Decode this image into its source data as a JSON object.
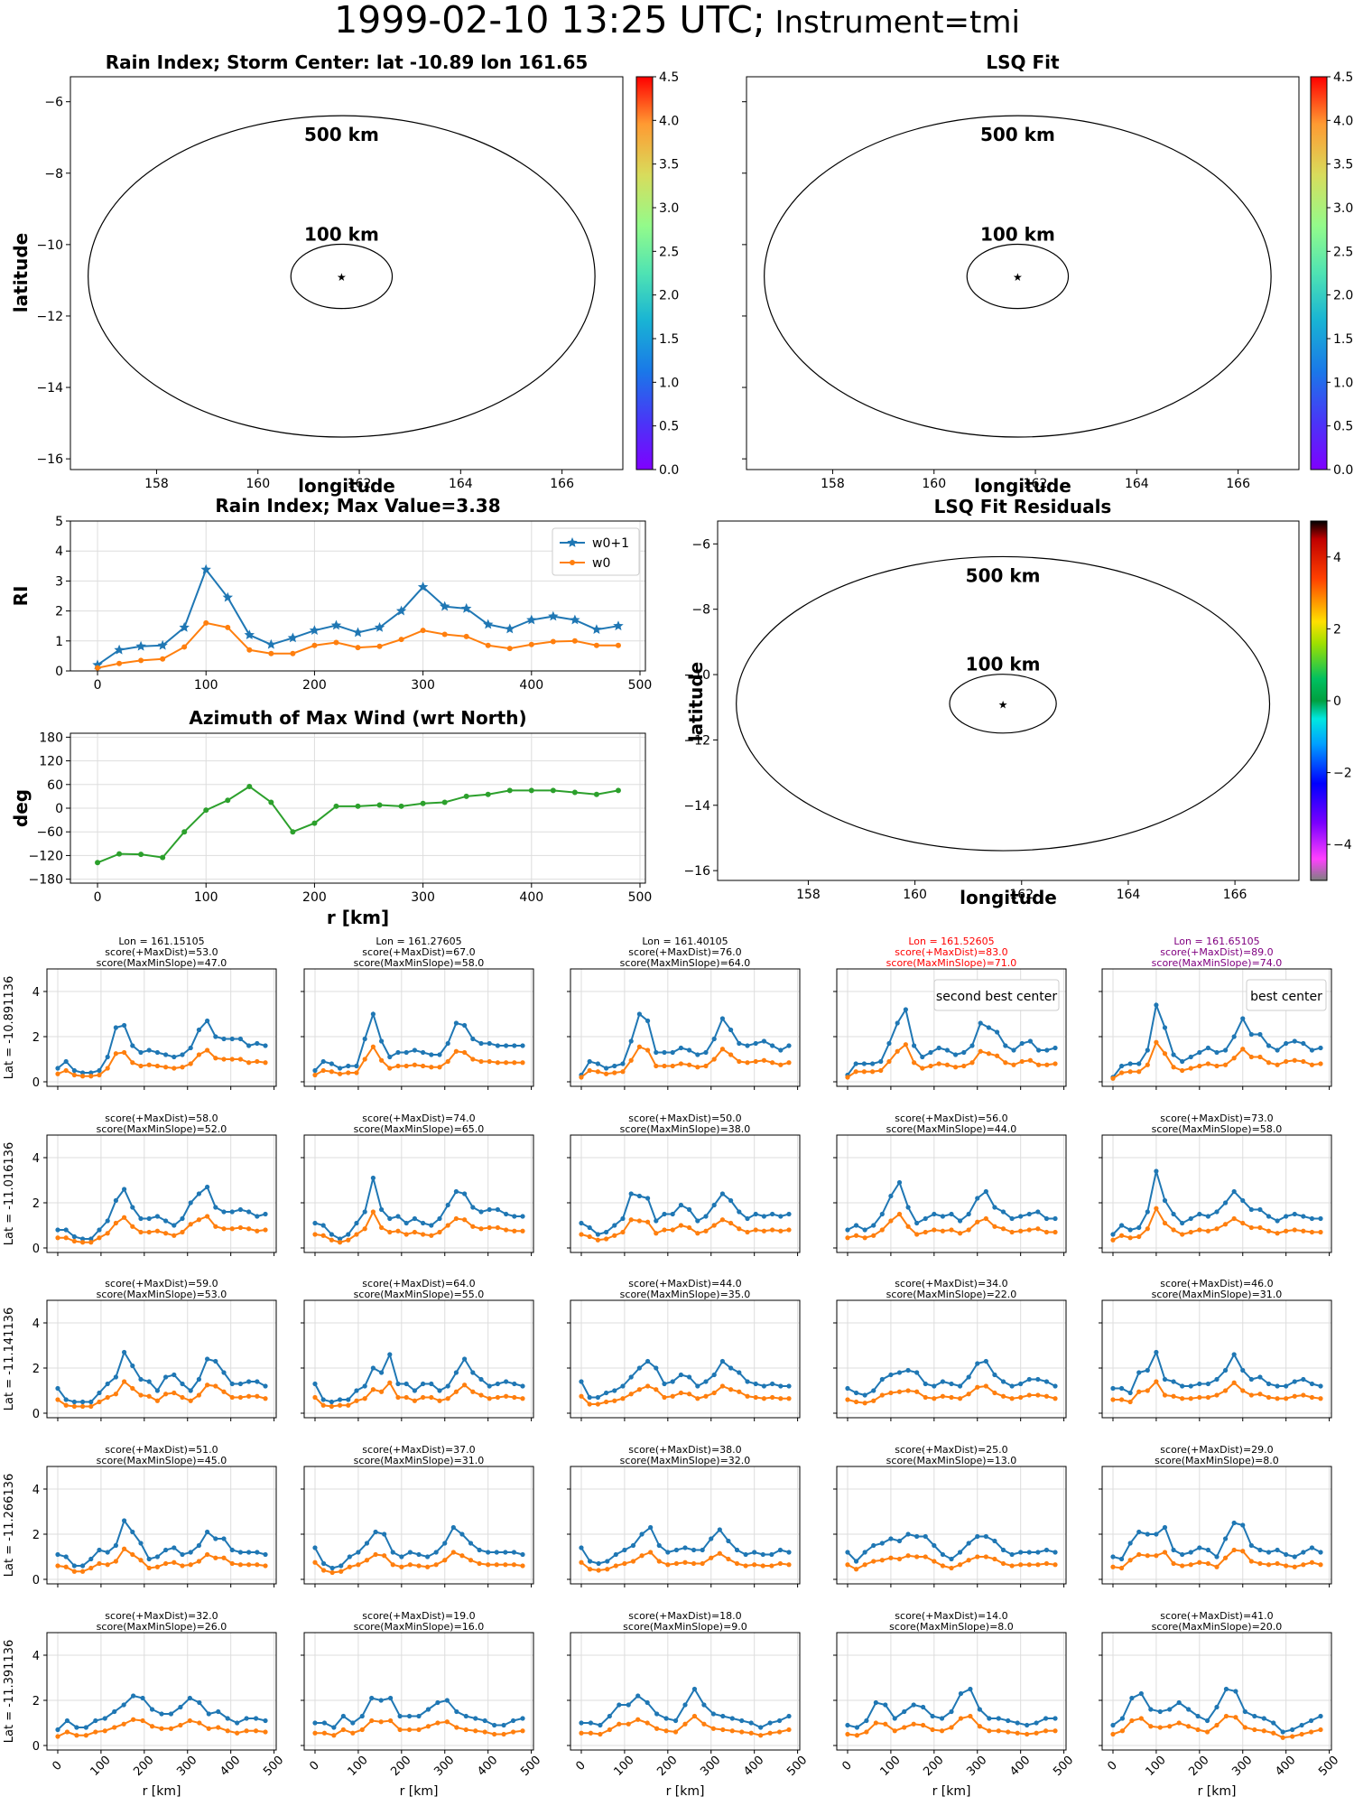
{
  "figure": {
    "title_main": "1999-02-10 13:25 UTC;",
    "title_instrument": " Instrument=tmi"
  },
  "maps": [
    {
      "title": "Rain Index; Storm Center: lat -10.89 lon 161.65",
      "xlabel": "longitude",
      "ylabel": "latitude",
      "circle_labels": [
        "500 km",
        "100 km"
      ],
      "colorbar": {
        "cmap": "rainbow",
        "min": 0.0,
        "max": 4.5,
        "ticks": [
          "0.0",
          "0.5",
          "1.0",
          "1.5",
          "2.0",
          "2.5",
          "3.0",
          "3.5",
          "4.0",
          "4.5"
        ]
      }
    },
    {
      "title": "LSQ Fit",
      "xlabel": "longitude",
      "ylabel": "",
      "circle_labels": [
        "500 km",
        "100 km"
      ],
      "colorbar": {
        "cmap": "rainbow",
        "min": 0.0,
        "max": 4.5,
        "ticks": [
          "0.0",
          "0.5",
          "1.0",
          "1.5",
          "2.0",
          "2.5",
          "3.0",
          "3.5",
          "4.0",
          "4.5"
        ]
      }
    },
    {
      "title": "LSQ Fit Residuals",
      "xlabel": "longitude",
      "ylabel": "latitude",
      "circle_labels": [
        "500 km",
        "100 km"
      ],
      "colorbar": {
        "cmap": "diverging",
        "min": -5,
        "max": 5,
        "ticks": [
          "−4",
          "−2",
          "0",
          "2",
          "4"
        ]
      }
    }
  ],
  "map_axes": {
    "xticks": [
      "158",
      "160",
      "162",
      "164",
      "166"
    ],
    "yticks": [
      "−6",
      "−8",
      "−10",
      "−12",
      "−14",
      "−16"
    ]
  },
  "chart_data": [
    {
      "type": "line",
      "title": "Rain Index; Max Value=3.38",
      "xlabel": "",
      "ylabel": "RI",
      "xlim": [
        -25,
        505
      ],
      "ylim": [
        0,
        5
      ],
      "xticks": [
        "0",
        "100",
        "200",
        "300",
        "400",
        "500"
      ],
      "yticks": [
        "0",
        "1",
        "2",
        "3",
        "4",
        "5"
      ],
      "legend": "upper-right",
      "x": [
        0,
        20,
        40,
        60,
        80,
        100,
        120,
        140,
        160,
        180,
        200,
        220,
        240,
        260,
        280,
        300,
        320,
        340,
        360,
        380,
        400,
        420,
        440,
        460,
        480
      ],
      "series": [
        {
          "name": "w0+1",
          "color": "#1f77b4",
          "marker": "star",
          "values": [
            0.2,
            0.7,
            0.82,
            0.85,
            1.45,
            3.38,
            2.45,
            1.2,
            0.88,
            1.1,
            1.35,
            1.52,
            1.28,
            1.45,
            2.0,
            2.8,
            2.15,
            2.08,
            1.55,
            1.4,
            1.7,
            1.82,
            1.7,
            1.38,
            1.5
          ]
        },
        {
          "name": "w0",
          "color": "#ff7f0e",
          "marker": "dot",
          "values": [
            0.1,
            0.25,
            0.35,
            0.4,
            0.8,
            1.6,
            1.45,
            0.7,
            0.58,
            0.58,
            0.85,
            0.95,
            0.78,
            0.82,
            1.05,
            1.35,
            1.22,
            1.15,
            0.85,
            0.75,
            0.88,
            0.98,
            1.0,
            0.85,
            0.85
          ]
        }
      ]
    },
    {
      "type": "line",
      "title": "Azimuth of Max Wind (wrt North)",
      "xlabel": "r [km]",
      "ylabel": "deg",
      "xlim": [
        -25,
        505
      ],
      "ylim": [
        -190,
        190
      ],
      "xticks": [
        "0",
        "100",
        "200",
        "300",
        "400",
        "500"
      ],
      "yticks": [
        "−180",
        "−120",
        "−60",
        "0",
        "60",
        "120",
        "180"
      ],
      "x": [
        0,
        20,
        40,
        60,
        80,
        100,
        120,
        140,
        160,
        180,
        200,
        220,
        240,
        260,
        280,
        300,
        320,
        340,
        360,
        380,
        400,
        420,
        440,
        460,
        480
      ],
      "series": [
        {
          "name": "",
          "color": "#2ca02c",
          "marker": "dot",
          "values": [
            -138,
            -116,
            -117,
            -125,
            -60,
            -5,
            20,
            55,
            15,
            -60,
            -38,
            5,
            5,
            8,
            5,
            12,
            15,
            30,
            35,
            45,
            45,
            45,
            40,
            35,
            45
          ]
        }
      ]
    }
  ],
  "grid": {
    "xticks": [
      "0",
      "100",
      "200",
      "300",
      "400",
      "500"
    ],
    "yticks": [
      "0",
      "2",
      "4"
    ],
    "xlabel": "r [km]",
    "row_labels": [
      "Lat = -10.891136",
      "Lat = -11.016136",
      "Lat = -11.141136",
      "Lat = -11.266136",
      "Lat = -11.391136"
    ],
    "header_titles": [
      {
        "lon": "Lon = 161.15105",
        "s1": "score(+MaxDist)=53.0",
        "s2": "score(MaxMinSlope)=47.0",
        "color": "#000000"
      },
      {
        "lon": "Lon = 161.27605",
        "s1": "score(+MaxDist)=67.0",
        "s2": "score(MaxMinSlope)=58.0",
        "color": "#000000"
      },
      {
        "lon": "Lon = 161.40105",
        "s1": "score(+MaxDist)=76.0",
        "s2": "score(MaxMinSlope)=64.0",
        "color": "#000000"
      },
      {
        "lon": "Lon = 161.52605",
        "s1": "score(+MaxDist)=83.0",
        "s2": "score(MaxMinSlope)=71.0",
        "color": "#ff0000"
      },
      {
        "lon": "Lon = 161.65105",
        "s1": "score(+MaxDist)=89.0",
        "s2": "score(MaxMinSlope)=74.0",
        "color": "#800080"
      }
    ],
    "row_scores": [
      [],
      [
        [
          "score(+MaxDist)=58.0",
          "score(MaxMinSlope)=52.0"
        ],
        [
          "score(+MaxDist)=74.0",
          "score(MaxMinSlope)=65.0"
        ],
        [
          "score(+MaxDist)=50.0",
          "score(MaxMinSlope)=38.0"
        ],
        [
          "score(+MaxDist)=56.0",
          "score(MaxMinSlope)=44.0"
        ],
        [
          "score(+MaxDist)=73.0",
          "score(MaxMinSlope)=58.0"
        ]
      ],
      [
        [
          "score(+MaxDist)=59.0",
          "score(MaxMinSlope)=53.0"
        ],
        [
          "score(+MaxDist)=64.0",
          "score(MaxMinSlope)=55.0"
        ],
        [
          "score(+MaxDist)=44.0",
          "score(MaxMinSlope)=35.0"
        ],
        [
          "score(+MaxDist)=34.0",
          "score(MaxMinSlope)=22.0"
        ],
        [
          "score(+MaxDist)=46.0",
          "score(MaxMinSlope)=31.0"
        ]
      ],
      [
        [
          "score(+MaxDist)=51.0",
          "score(MaxMinSlope)=45.0"
        ],
        [
          "score(+MaxDist)=37.0",
          "score(MaxMinSlope)=31.0"
        ],
        [
          "score(+MaxDist)=38.0",
          "score(MaxMinSlope)=32.0"
        ],
        [
          "score(+MaxDist)=25.0",
          "score(MaxMinSlope)=13.0"
        ],
        [
          "score(+MaxDist)=29.0",
          "score(MaxMinSlope)=8.0"
        ]
      ],
      [
        [
          "score(+MaxDist)=32.0",
          "score(MaxMinSlope)=26.0"
        ],
        [
          "score(+MaxDist)=19.0",
          "score(MaxMinSlope)=16.0"
        ],
        [
          "score(+MaxDist)=18.0",
          "score(MaxMinSlope)=9.0"
        ],
        [
          "score(+MaxDist)=14.0",
          "score(MaxMinSlope)=8.0"
        ],
        [
          "score(+MaxDist)=41.0",
          "score(MaxMinSlope)=20.0"
        ]
      ]
    ],
    "annotations": {
      "second_best": "second best center",
      "best": "best center"
    },
    "series_blue": [
      [
        [
          0.6,
          0.9,
          0.5,
          0.4,
          0.4,
          0.5,
          1.1,
          2.4,
          2.5,
          1.6,
          1.3,
          1.4,
          1.3,
          1.2,
          1.1,
          1.2,
          1.5,
          2.3,
          2.7,
          2.0,
          1.9,
          1.9,
          1.9,
          1.6,
          1.7,
          1.6
        ],
        [
          0.5,
          0.9,
          0.8,
          0.6,
          0.7,
          0.7,
          1.9,
          3.0,
          1.8,
          1.1,
          1.3,
          1.3,
          1.4,
          1.3,
          1.2,
          1.2,
          1.7,
          2.6,
          2.5,
          1.9,
          1.7,
          1.7,
          1.6,
          1.6,
          1.6,
          1.6
        ],
        [
          0.3,
          0.9,
          0.8,
          0.6,
          0.7,
          0.8,
          1.8,
          3.0,
          2.7,
          1.3,
          1.3,
          1.3,
          1.5,
          1.4,
          1.2,
          1.3,
          1.9,
          2.8,
          2.3,
          1.7,
          1.6,
          1.7,
          1.8,
          1.6,
          1.4,
          1.6
        ],
        [
          0.3,
          0.8,
          0.8,
          0.8,
          0.9,
          1.7,
          2.6,
          3.2,
          1.6,
          1.1,
          1.3,
          1.5,
          1.4,
          1.2,
          1.3,
          1.6,
          2.6,
          2.4,
          2.2,
          1.6,
          1.4,
          1.7,
          1.8,
          1.4,
          1.4,
          1.5
        ],
        [
          0.2,
          0.7,
          0.8,
          0.8,
          1.4,
          3.4,
          2.4,
          1.2,
          0.9,
          1.1,
          1.3,
          1.5,
          1.3,
          1.4,
          2.0,
          2.8,
          2.1,
          2.1,
          1.6,
          1.4,
          1.7,
          1.8,
          1.7,
          1.4,
          1.5
        ]
      ],
      [
        [
          0.8,
          0.8,
          0.5,
          0.4,
          0.4,
          0.8,
          1.2,
          2.1,
          2.6,
          1.8,
          1.3,
          1.3,
          1.4,
          1.2,
          1.0,
          1.3,
          2.0,
          2.4,
          2.7,
          1.8,
          1.6,
          1.6,
          1.7,
          1.6,
          1.4,
          1.5
        ],
        [
          1.1,
          1.0,
          0.6,
          0.4,
          0.6,
          1.1,
          1.6,
          3.1,
          1.7,
          1.3,
          1.4,
          1.1,
          1.3,
          1.1,
          1.0,
          1.3,
          1.9,
          2.5,
          2.4,
          1.8,
          1.6,
          1.7,
          1.7,
          1.5,
          1.4,
          1.4
        ],
        [
          1.1,
          0.9,
          0.6,
          0.7,
          1.0,
          1.3,
          2.4,
          2.3,
          2.2,
          1.2,
          1.5,
          1.5,
          1.9,
          1.7,
          1.2,
          1.4,
          1.9,
          2.4,
          2.1,
          1.6,
          1.3,
          1.5,
          1.4,
          1.5,
          1.4,
          1.5
        ],
        [
          0.8,
          1.0,
          0.8,
          1.0,
          1.5,
          2.3,
          2.9,
          1.8,
          1.1,
          1.3,
          1.5,
          1.4,
          1.5,
          1.2,
          1.5,
          2.2,
          2.5,
          1.8,
          1.6,
          1.3,
          1.4,
          1.5,
          1.6,
          1.3,
          1.3
        ],
        [
          0.6,
          1.0,
          0.8,
          0.9,
          1.6,
          3.4,
          2.1,
          1.5,
          1.1,
          1.3,
          1.5,
          1.4,
          1.6,
          2.0,
          2.5,
          2.1,
          1.7,
          1.7,
          1.4,
          1.2,
          1.4,
          1.5,
          1.4,
          1.3,
          1.3
        ]
      ],
      [
        [
          1.1,
          0.6,
          0.5,
          0.5,
          0.5,
          0.9,
          1.3,
          1.6,
          2.7,
          2.1,
          1.5,
          1.4,
          1.0,
          1.6,
          1.7,
          1.3,
          1.0,
          1.5,
          2.4,
          2.3,
          1.8,
          1.3,
          1.3,
          1.4,
          1.4,
          1.2
        ],
        [
          1.3,
          0.6,
          0.5,
          0.6,
          0.6,
          1.0,
          1.2,
          2.0,
          1.8,
          2.6,
          1.3,
          1.3,
          1.0,
          1.3,
          1.3,
          1.0,
          1.2,
          1.8,
          2.4,
          1.8,
          1.5,
          1.2,
          1.3,
          1.4,
          1.3,
          1.2
        ],
        [
          1.4,
          0.7,
          0.7,
          0.9,
          1.0,
          1.2,
          1.6,
          2.0,
          2.3,
          2.0,
          1.3,
          1.4,
          1.7,
          1.6,
          1.2,
          1.4,
          1.7,
          2.3,
          2.0,
          1.8,
          1.4,
          1.3,
          1.2,
          1.3,
          1.2,
          1.2
        ],
        [
          1.1,
          0.9,
          0.8,
          1.0,
          1.5,
          1.7,
          1.8,
          1.9,
          1.8,
          1.3,
          1.2,
          1.4,
          1.3,
          1.2,
          1.6,
          2.2,
          2.3,
          1.7,
          1.4,
          1.2,
          1.3,
          1.5,
          1.5,
          1.4,
          1.2
        ],
        [
          1.1,
          1.1,
          0.9,
          1.8,
          1.9,
          2.7,
          1.5,
          1.4,
          1.2,
          1.2,
          1.3,
          1.3,
          1.5,
          1.9,
          2.6,
          1.9,
          1.5,
          1.6,
          1.3,
          1.2,
          1.2,
          1.4,
          1.5,
          1.3,
          1.2
        ]
      ],
      [
        [
          1.1,
          1.0,
          0.6,
          0.6,
          0.9,
          1.3,
          1.2,
          1.5,
          2.6,
          2.1,
          1.6,
          0.9,
          1.0,
          1.3,
          1.4,
          1.1,
          1.2,
          1.5,
          2.1,
          1.8,
          1.8,
          1.3,
          1.2,
          1.2,
          1.2,
          1.1
        ],
        [
          1.4,
          0.7,
          0.5,
          0.6,
          1.0,
          1.2,
          1.6,
          2.1,
          2.0,
          1.2,
          1.0,
          1.2,
          1.1,
          1.0,
          1.2,
          1.6,
          2.3,
          2.0,
          1.6,
          1.3,
          1.2,
          1.2,
          1.2,
          1.2,
          1.1
        ],
        [
          1.4,
          0.8,
          0.7,
          0.8,
          1.1,
          1.3,
          1.5,
          2.0,
          2.3,
          1.5,
          1.2,
          1.3,
          1.4,
          1.3,
          1.3,
          1.8,
          2.2,
          1.7,
          1.3,
          1.1,
          1.2,
          1.1,
          1.1,
          1.3,
          1.2
        ],
        [
          1.2,
          0.8,
          1.2,
          1.5,
          1.6,
          1.8,
          1.7,
          2.0,
          1.9,
          1.9,
          1.5,
          1.1,
          0.9,
          1.2,
          1.6,
          1.9,
          1.9,
          1.7,
          1.3,
          1.1,
          1.2,
          1.2,
          1.2,
          1.3,
          1.2
        ],
        [
          1.0,
          0.9,
          1.6,
          2.1,
          2.0,
          2.0,
          2.3,
          1.3,
          1.1,
          1.2,
          1.4,
          1.3,
          1.0,
          1.8,
          2.5,
          2.4,
          1.5,
          1.3,
          1.2,
          1.3,
          1.1,
          1.0,
          1.2,
          1.4,
          1.2
        ]
      ],
      [
        [
          0.7,
          1.1,
          0.8,
          0.8,
          1.1,
          1.2,
          1.5,
          1.8,
          2.2,
          2.1,
          1.6,
          1.4,
          1.4,
          1.7,
          2.1,
          1.9,
          1.4,
          1.5,
          1.2,
          1.0,
          1.2,
          1.2,
          1.1
        ],
        [
          1.0,
          1.0,
          0.8,
          1.3,
          1.0,
          1.3,
          2.1,
          2.0,
          2.1,
          1.3,
          1.3,
          1.3,
          1.6,
          1.9,
          2.0,
          1.5,
          1.3,
          1.2,
          1.1,
          0.9,
          0.9,
          1.1,
          1.2
        ],
        [
          1.0,
          1.0,
          0.9,
          1.3,
          1.8,
          1.8,
          2.2,
          1.9,
          1.4,
          1.2,
          1.1,
          1.8,
          2.5,
          1.8,
          1.4,
          1.3,
          1.2,
          1.1,
          1.0,
          0.8,
          1.0,
          1.1,
          1.3
        ],
        [
          0.9,
          0.8,
          1.1,
          1.9,
          1.8,
          1.2,
          1.5,
          1.8,
          1.7,
          1.3,
          1.2,
          1.5,
          2.3,
          2.5,
          1.6,
          1.2,
          1.2,
          1.1,
          1.0,
          0.9,
          1.0,
          1.2,
          1.2
        ],
        [
          0.9,
          1.2,
          2.1,
          2.3,
          1.6,
          1.5,
          1.6,
          1.9,
          1.6,
          1.3,
          1.1,
          1.7,
          2.5,
          2.4,
          1.5,
          1.3,
          1.2,
          1.0,
          0.6,
          0.7,
          0.9,
          1.1,
          1.3
        ]
      ]
    ]
  }
}
